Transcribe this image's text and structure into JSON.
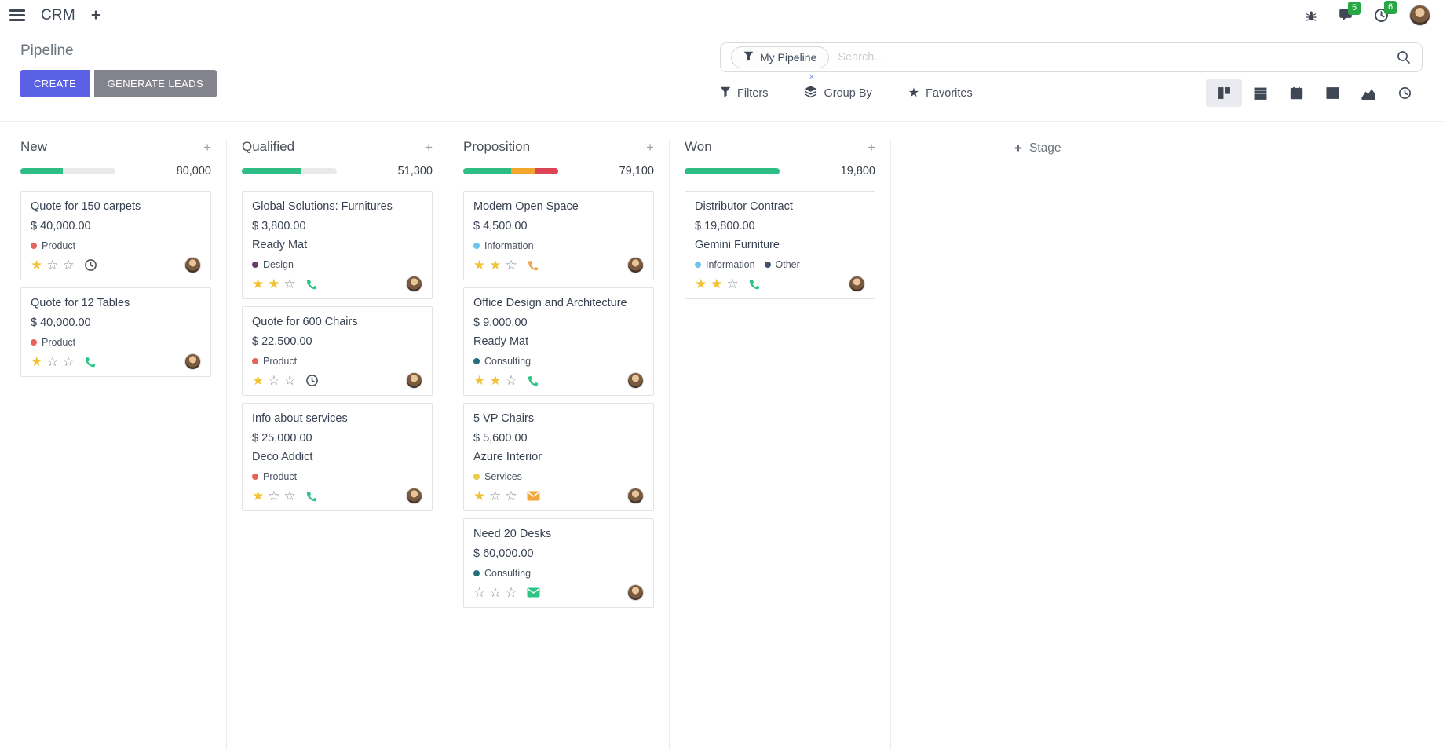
{
  "colors": {
    "primary": "#5b61e5",
    "secondary_button": "#83838d",
    "badge_green": "#28a745",
    "progress_green": "#2ebd85",
    "progress_orange": "#f1a62c",
    "progress_red": "#da4453",
    "progress_track": "#e9e9ec",
    "star_filled": "#f1c232"
  },
  "navbar": {
    "app_name": "CRM",
    "message_badge": "5",
    "activity_badge": "6"
  },
  "control_panel": {
    "title": "Pipeline",
    "buttons": {
      "create": "CREATE",
      "generate_leads": "GENERATE LEADS"
    },
    "search": {
      "facet_label": "My Pipeline",
      "placeholder": "Search...",
      "remove_facet": "×"
    },
    "actions": {
      "filters": "Filters",
      "group_by": "Group By",
      "favorites": "Favorites"
    },
    "view_switcher": {
      "active": "kanban",
      "views": [
        "kanban",
        "list",
        "calendar",
        "pivot",
        "graph",
        "activity"
      ]
    }
  },
  "kanban": {
    "add_stage_label": "Stage",
    "columns": [
      {
        "name": "New",
        "total": "80,000",
        "segments": [
          {
            "hex": "#2ebd85",
            "pct": 45
          }
        ],
        "cards": [
          {
            "title": "Quote for 150 carpets",
            "amount": "$ 40,000.00",
            "partner": null,
            "tags": [
              {
                "label": "Product",
                "hex": "#e8625c"
              }
            ],
            "stars": 1,
            "activity": {
              "icon": "clock",
              "hex": "#495057"
            }
          },
          {
            "title": "Quote for 12 Tables",
            "amount": "$ 40,000.00",
            "partner": null,
            "tags": [
              {
                "label": "Product",
                "hex": "#e8625c"
              }
            ],
            "stars": 1,
            "activity": {
              "icon": "phone",
              "hex": "#2dc487"
            }
          }
        ]
      },
      {
        "name": "Qualified",
        "total": "51,300",
        "segments": [
          {
            "hex": "#2ebd85",
            "pct": 63
          }
        ],
        "cards": [
          {
            "title": "Global Solutions: Furnitures",
            "amount": "$ 3,800.00",
            "partner": "Ready Mat",
            "tags": [
              {
                "label": "Design",
                "hex": "#6b3a6e"
              }
            ],
            "stars": 2,
            "activity": {
              "icon": "phone",
              "hex": "#2dc487"
            }
          },
          {
            "title": "Quote for 600 Chairs",
            "amount": "$ 22,500.00",
            "partner": null,
            "tags": [
              {
                "label": "Product",
                "hex": "#e8625c"
              }
            ],
            "stars": 1,
            "activity": {
              "icon": "clock",
              "hex": "#495057"
            }
          },
          {
            "title": "Info about services",
            "amount": "$ 25,000.00",
            "partner": "Deco Addict",
            "tags": [
              {
                "label": "Product",
                "hex": "#e8625c"
              }
            ],
            "stars": 1,
            "activity": {
              "icon": "phone",
              "hex": "#2dc487"
            }
          }
        ]
      },
      {
        "name": "Proposition",
        "total": "79,100",
        "segments": [
          {
            "hex": "#2ebd85",
            "pct": 50
          },
          {
            "hex": "#f1a62c",
            "pct": 26
          },
          {
            "hex": "#da4453",
            "pct": 24
          }
        ],
        "cards": [
          {
            "title": "Modern Open Space",
            "amount": "$ 4,500.00",
            "partner": null,
            "tags": [
              {
                "label": "Information",
                "hex": "#6ec2ee"
              }
            ],
            "stars": 2,
            "activity": {
              "icon": "phone",
              "hex": "#f2a74b"
            }
          },
          {
            "title": "Office Design and Architecture",
            "amount": "$ 9,000.00",
            "partner": "Ready Mat",
            "tags": [
              {
                "label": "Consulting",
                "hex": "#266f7a"
              }
            ],
            "stars": 2,
            "activity": {
              "icon": "phone",
              "hex": "#2dc487"
            }
          },
          {
            "title": "5 VP Chairs",
            "amount": "$ 5,600.00",
            "partner": "Azure Interior",
            "tags": [
              {
                "label": "Services",
                "hex": "#ecc94b"
              }
            ],
            "stars": 1,
            "activity": {
              "icon": "envelope",
              "hex": "#f0a73c"
            }
          },
          {
            "title": "Need 20 Desks",
            "amount": "$ 60,000.00",
            "partner": null,
            "tags": [
              {
                "label": "Consulting",
                "hex": "#266f7a"
              }
            ],
            "stars": 0,
            "activity": {
              "icon": "envelope",
              "hex": "#2dc487"
            }
          }
        ]
      },
      {
        "name": "Won",
        "total": "19,800",
        "segments": [
          {
            "hex": "#2ebd85",
            "pct": 100
          }
        ],
        "cards": [
          {
            "title": "Distributor Contract",
            "amount": "$ 19,800.00",
            "partner": "Gemini Furniture",
            "tags": [
              {
                "label": "Information",
                "hex": "#6ec2ee"
              },
              {
                "label": "Other",
                "hex": "#41536d"
              }
            ],
            "stars": 2,
            "activity": {
              "icon": "phone",
              "hex": "#2dc487"
            }
          }
        ]
      }
    ]
  }
}
